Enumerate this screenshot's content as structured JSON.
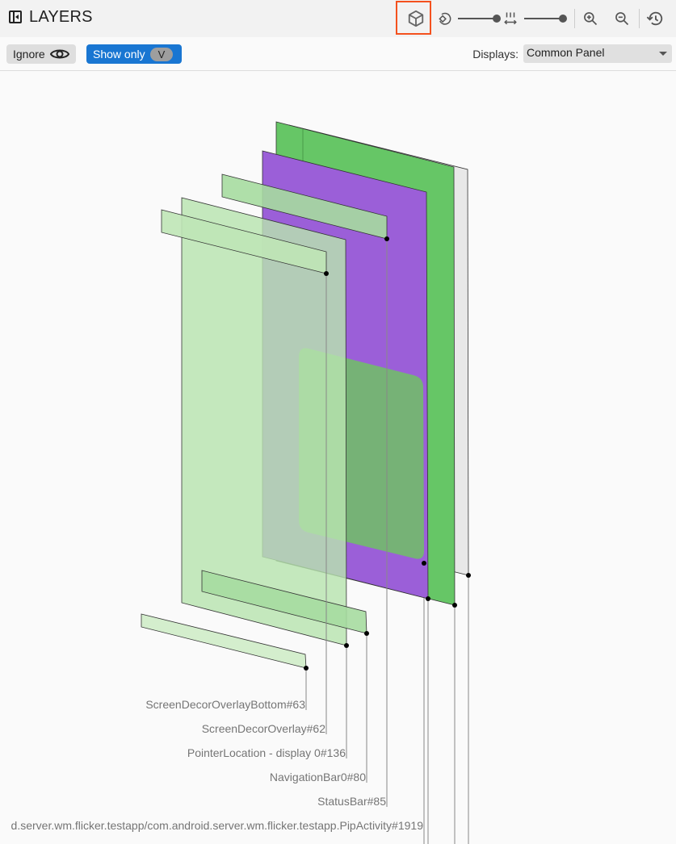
{
  "header": {
    "title": "LAYERS",
    "icons": [
      "collapse-panel-icon",
      "3d-view-icon",
      "rotate-icon",
      "spacing-icon",
      "zoom-in-icon",
      "zoom-out-icon",
      "reset-history-icon"
    ],
    "highlight_color": "#f4511e"
  },
  "toolbar": {
    "ignore_label": "Ignore",
    "show_only_label": "Show only",
    "show_only_chip": "V",
    "displays_label": "Displays:",
    "displays_value": "Common Panel"
  },
  "layers": [
    {
      "name": "ScreenDecorOverlayBottom#63"
    },
    {
      "name": "ScreenDecorOverlay#62"
    },
    {
      "name": "PointerLocation - display 0#136"
    },
    {
      "name": "NavigationBar0#80"
    },
    {
      "name": "StatusBar#85"
    },
    {
      "name": "d.server.wm.flicker.testapp/com.android.server.wm.flicker.testapp.PipActivity#1919"
    }
  ],
  "colors": {
    "accent": "#1976d2",
    "green": "#66c666",
    "purple": "#9b5fd8",
    "light_green": "#b8e4b0"
  }
}
